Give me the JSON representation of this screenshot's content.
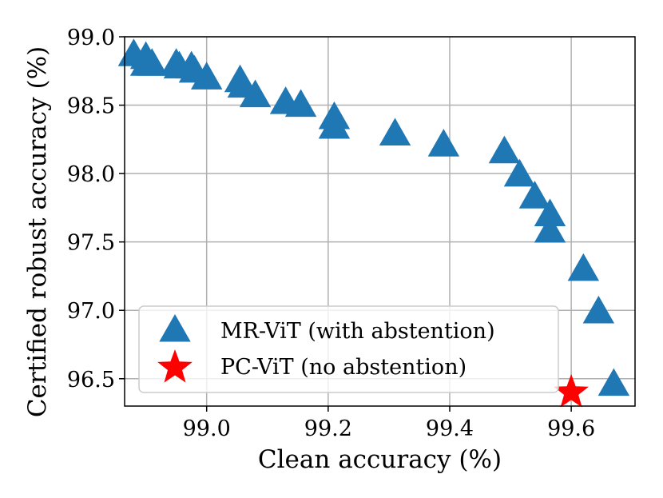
{
  "chart_data": {
    "type": "scatter",
    "title": "",
    "xlabel": "Clean accuracy (%)",
    "ylabel": "Certified robust accuracy (%)",
    "xlim": [
      98.865,
      99.705
    ],
    "ylim": [
      96.3,
      99.0
    ],
    "xticks": [
      99.0,
      99.2,
      99.4,
      99.6
    ],
    "xtick_labels": [
      "99.0",
      "99.2",
      "99.4",
      "99.6"
    ],
    "yticks": [
      96.5,
      97.0,
      97.5,
      98.0,
      98.5,
      99.0
    ],
    "ytick_labels": [
      "96.5",
      "97.0",
      "97.5",
      "98.0",
      "98.5",
      "99.0"
    ],
    "grid": true,
    "legend_position": "lower-left",
    "series": [
      {
        "name": "MR-ViT (with abstention)",
        "marker": "triangle",
        "color": "#1f77b4",
        "points": [
          {
            "x": 98.88,
            "y": 98.87
          },
          {
            "x": 98.9,
            "y": 98.85
          },
          {
            "x": 98.9,
            "y": 98.8
          },
          {
            "x": 98.91,
            "y": 98.8
          },
          {
            "x": 98.95,
            "y": 98.8
          },
          {
            "x": 98.955,
            "y": 98.78
          },
          {
            "x": 98.975,
            "y": 98.78
          },
          {
            "x": 98.98,
            "y": 98.75
          },
          {
            "x": 99.0,
            "y": 98.7
          },
          {
            "x": 99.055,
            "y": 98.68
          },
          {
            "x": 99.06,
            "y": 98.64
          },
          {
            "x": 99.08,
            "y": 98.57
          },
          {
            "x": 99.13,
            "y": 98.52
          },
          {
            "x": 99.155,
            "y": 98.5
          },
          {
            "x": 99.21,
            "y": 98.41
          },
          {
            "x": 99.21,
            "y": 98.34
          },
          {
            "x": 99.31,
            "y": 98.29
          },
          {
            "x": 99.39,
            "y": 98.21
          },
          {
            "x": 99.49,
            "y": 98.16
          },
          {
            "x": 99.515,
            "y": 97.99
          },
          {
            "x": 99.54,
            "y": 97.83
          },
          {
            "x": 99.565,
            "y": 97.7
          },
          {
            "x": 99.565,
            "y": 97.58
          },
          {
            "x": 99.62,
            "y": 97.3
          },
          {
            "x": 99.645,
            "y": 96.99
          },
          {
            "x": 99.67,
            "y": 96.46
          }
        ]
      },
      {
        "name": "PC-ViT (no abstention)",
        "marker": "star",
        "color": "#ff0000",
        "points": [
          {
            "x": 99.6,
            "y": 96.4
          }
        ]
      }
    ]
  }
}
